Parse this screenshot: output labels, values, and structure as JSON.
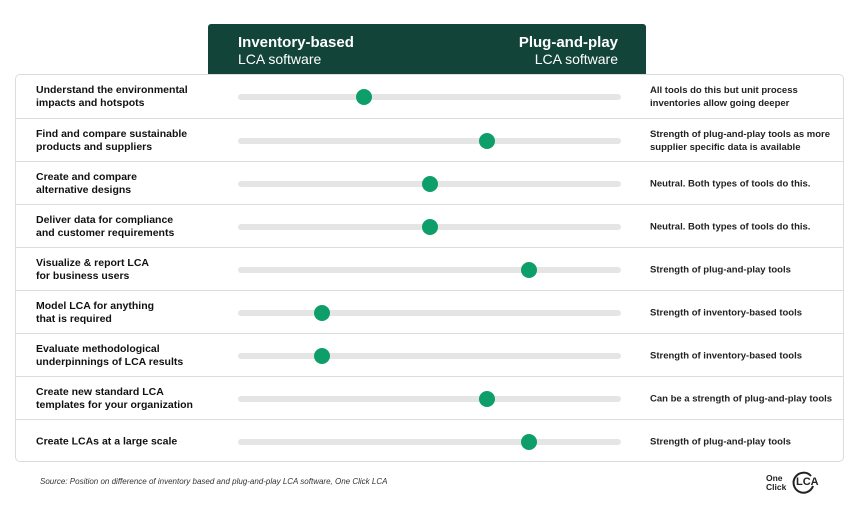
{
  "header": {
    "left_title": "Inventory-based",
    "left_subtitle": "LCA software",
    "right_title": "Plug-and-play",
    "right_subtitle": "LCA software"
  },
  "rows": [
    {
      "label": "Understand the environmental\nimpacts and hotspots",
      "position": 0.33,
      "comment": "All tools do this but unit process inventories allow going deeper"
    },
    {
      "label": "Find and compare sustainable\nproducts and suppliers",
      "position": 0.65,
      "comment": "Strength of plug-and-play tools as more supplier specific data is available"
    },
    {
      "label": "Create and compare\nalternative designs",
      "position": 0.5,
      "comment": "Neutral. Both types of tools do this."
    },
    {
      "label": "Deliver data for compliance\nand customer requirements",
      "position": 0.5,
      "comment": "Neutral. Both types of tools do this."
    },
    {
      "label": "Visualize & report LCA\nfor business users",
      "position": 0.76,
      "comment": "Strength of plug-and-play tools"
    },
    {
      "label": "Model LCA for anything\nthat is required",
      "position": 0.22,
      "comment": "Strength of inventory-based tools"
    },
    {
      "label": "Evaluate methodological\nunderpinnings of LCA results",
      "position": 0.22,
      "comment": "Strength of inventory-based tools"
    },
    {
      "label": "Create new standard LCA\ntemplates  for your organization",
      "position": 0.65,
      "comment": "Can be a strength of plug-and-play tools"
    },
    {
      "label": "Create LCAs at a large scale",
      "position": 0.76,
      "comment": "Strength of plug-and-play tools"
    }
  ],
  "source": "Source: Position on difference of inventory based and plug-and-play LCA software, One Click LCA",
  "logo": {
    "line1": "One",
    "line2": "Click",
    "mark": "LCA"
  },
  "colors": {
    "header_bg": "#13443a",
    "dot": "#0e9e6a",
    "track": "#e5e5e5"
  }
}
